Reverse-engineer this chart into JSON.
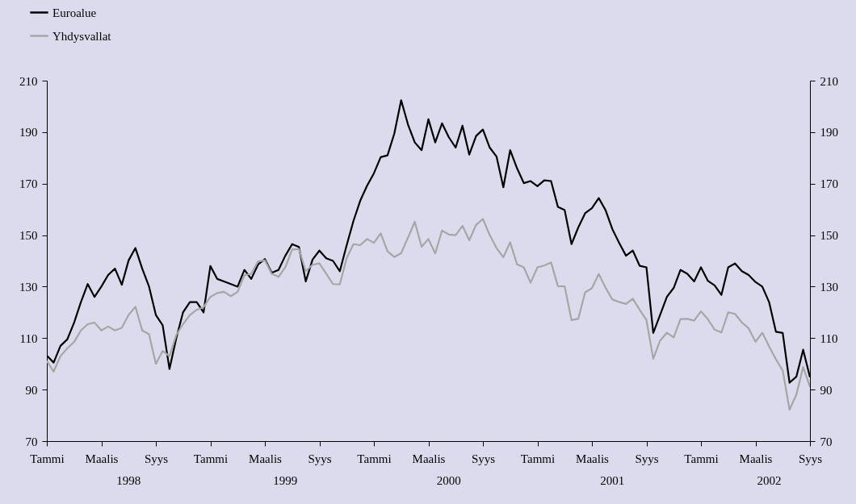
{
  "chart_data": {
    "type": "line",
    "legend": "top left",
    "grid": false,
    "categories": [
      "Tammi",
      null,
      null,
      null,
      null,
      null,
      null,
      null,
      "Maalis",
      null,
      null,
      null,
      null,
      null,
      null,
      null,
      "Syys",
      null,
      null,
      null,
      null,
      null,
      null,
      null,
      "Tammi",
      null,
      null,
      null,
      null,
      null,
      null,
      null,
      "Maalis",
      null,
      null,
      null,
      null,
      null,
      null,
      null,
      "Syys",
      null,
      null,
      null,
      null,
      null,
      null,
      null,
      "Tammi",
      null,
      null,
      null,
      null,
      null,
      null,
      null,
      "Maalis",
      null,
      null,
      null,
      null,
      null,
      null,
      null,
      "Syys",
      null,
      null,
      null,
      null,
      null,
      null,
      null,
      "Tammi",
      null,
      null,
      null,
      null,
      null,
      null,
      null,
      "Maalis",
      null,
      null,
      null,
      null,
      null,
      null,
      null,
      "Syys",
      null,
      null,
      null,
      null,
      null,
      null,
      null,
      "Tammi",
      null,
      null,
      null,
      null,
      null,
      null,
      null,
      "Maalis",
      null,
      null,
      null,
      null,
      null,
      null,
      null,
      "Syys"
    ],
    "ylim": [
      70,
      210
    ],
    "yticks": [
      70,
      90,
      110,
      130,
      150,
      170,
      190,
      210
    ],
    "y2lim": [
      70,
      210
    ],
    "y2ticks": [
      70,
      90,
      110,
      130,
      150,
      170,
      190,
      210
    ],
    "annotations": [
      "1998",
      "1999",
      "2000",
      "2001",
      "2002"
    ],
    "series": [
      {
        "name": "Euroalue",
        "color": "#000000",
        "line_style": "solid",
        "values": [
          103.2,
          100.5,
          107,
          109.5,
          116,
          124,
          131,
          126,
          130,
          134.5,
          137,
          130.7,
          140.2,
          145,
          137,
          130,
          119,
          115,
          98,
          110,
          120.1,
          124,
          124,
          120,
          138,
          133,
          132,
          131,
          130,
          136.5,
          133,
          138.6,
          140.7,
          135.4,
          136.5,
          142,
          146.5,
          145.4,
          132,
          140.5,
          144,
          141,
          140,
          136,
          146,
          155.5,
          163.4,
          169.2,
          174,
          180.3,
          181,
          189.5,
          202.4,
          193,
          186,
          183,
          195,
          186,
          193.4,
          188,
          184,
          192.5,
          181.3,
          188.5,
          191,
          184,
          180.5,
          168.6,
          183,
          176,
          170.2,
          171,
          169,
          171.3,
          171,
          161,
          159.7,
          146.5,
          153,
          158.5,
          160.5,
          164.4,
          159.7,
          152.3,
          147,
          142,
          144,
          138.1,
          137.5,
          112,
          119,
          126,
          129.5,
          136.5,
          135,
          132,
          137.5,
          132.3,
          130.5,
          126.8,
          137.5,
          139,
          136,
          134.5,
          131.8,
          130,
          124,
          112.5,
          112,
          92.7,
          95,
          105.5,
          94.8
        ]
      },
      {
        "name": "Yhdysvallat",
        "color": "#a6a6a6",
        "line_style": "solid",
        "values": [
          101.1,
          97,
          103,
          106,
          108.5,
          113,
          115.4,
          116,
          113,
          114.5,
          113,
          114,
          119,
          122.2,
          113,
          111.5,
          100,
          105,
          103,
          111.2,
          115.5,
          119,
          121,
          122,
          126,
          127.5,
          128,
          126.3,
          128,
          134.4,
          135,
          139.8,
          140.2,
          135,
          133.8,
          137.5,
          144.4,
          144.6,
          136,
          138.5,
          139,
          135,
          131,
          130.9,
          141,
          146.5,
          146.1,
          148.5,
          147,
          150.7,
          143.7,
          141.5,
          143,
          149,
          155.2,
          145.5,
          148.5,
          142.9,
          151.8,
          150.2,
          150,
          153.6,
          148,
          154,
          156.3,
          150,
          145,
          141.4,
          147.2,
          138.7,
          137.5,
          131.5,
          137.5,
          138.2,
          139.4,
          130.2,
          130.1,
          117,
          117.5,
          127.8,
          129.4,
          134.9,
          129.6,
          125,
          124,
          123.3,
          125.3,
          121,
          117,
          102,
          109,
          112.1,
          110.3,
          117.4,
          117.5,
          116.8,
          120.4,
          117.4,
          113.3,
          112.2,
          120,
          119.4,
          116.1,
          113.8,
          108.6,
          112.1,
          106.8,
          101.8,
          97.4,
          82.2,
          88,
          98.8,
          91.1
        ]
      }
    ]
  }
}
